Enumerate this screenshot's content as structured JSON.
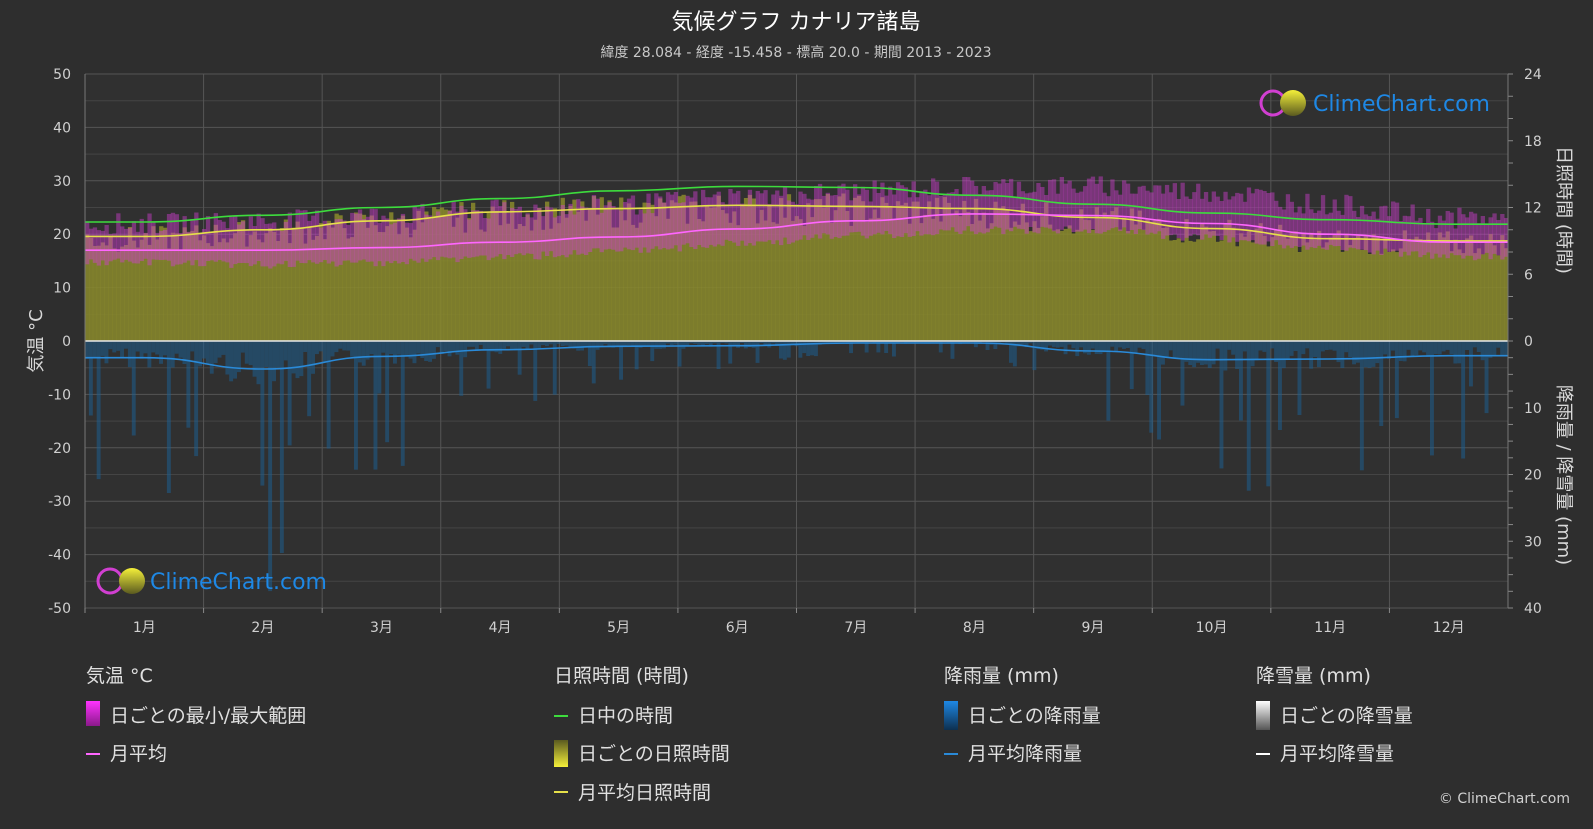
{
  "header": {
    "title": "気候グラフ カナリア諸島",
    "subtitle": "緯度 28.084 - 経度 -15.458 - 標高 20.0 - 期間 2013 - 2023"
  },
  "brand": {
    "logo_text": "ClimeChart.com",
    "copyright": "© ClimeChart.com"
  },
  "colors": {
    "background": "#2e2e2e",
    "temp_range": "#d13fd1",
    "temp_avg": "#ff66ff",
    "daylight": "#3ddc3d",
    "sunshine_fill": "#8a8a2c",
    "sunshine_avg": "#e6e04a",
    "rain_bars": "#1d5f8f",
    "rain_avg": "#2a8ad8",
    "snow": "#ffffff",
    "logo_text": "#1e88e5"
  },
  "chart_data": {
    "type": "area",
    "categories": [
      "1月",
      "2月",
      "3月",
      "4月",
      "5月",
      "6月",
      "7月",
      "8月",
      "9月",
      "10月",
      "11月",
      "12月"
    ],
    "axes": {
      "left": {
        "label": "気温 °C",
        "min": -50,
        "max": 50,
        "ticks": [
          "50",
          "40",
          "30",
          "20",
          "10",
          "0",
          "-10",
          "-20",
          "-30",
          "-40",
          "-50"
        ]
      },
      "right_top": {
        "label": "日照時間 (時間)",
        "min": 0,
        "max": 24,
        "ticks": [
          "24",
          "18",
          "12",
          "6",
          "0"
        ]
      },
      "right_bottom": {
        "label": "降雨量 / 降雪量 (mm)",
        "min": 0,
        "max": 40,
        "ticks": [
          "10",
          "20",
          "30",
          "40"
        ]
      }
    },
    "grid": true,
    "series": [
      {
        "name": "日中の時間",
        "unit": "h",
        "values": [
          10.7,
          11.3,
          12.0,
          12.8,
          13.5,
          13.9,
          13.8,
          13.1,
          12.3,
          11.5,
          10.9,
          10.5
        ]
      },
      {
        "name": "月平均日照時間",
        "unit": "h",
        "values": [
          9.4,
          10.0,
          10.8,
          11.6,
          11.9,
          12.2,
          12.1,
          11.9,
          11.1,
          10.1,
          9.2,
          9.0
        ]
      },
      {
        "name": "月平均",
        "unit": "°C",
        "values": [
          17.0,
          17.0,
          17.5,
          18.5,
          19.5,
          21.0,
          22.5,
          23.8,
          23.5,
          22.0,
          20.0,
          18.5
        ]
      },
      {
        "name": "日ごとの最小/最大範囲",
        "unit": "°C",
        "min": [
          15.5,
          15.0,
          15.5,
          16.5,
          17.5,
          19.0,
          20.5,
          21.5,
          21.5,
          20.0,
          18.0,
          16.5
        ],
        "max": [
          20.0,
          20.5,
          21.5,
          22.5,
          23.5,
          25.0,
          26.0,
          27.0,
          27.0,
          26.0,
          23.5,
          21.0
        ]
      },
      {
        "name": "月平均降雨量",
        "unit": "mm",
        "values": [
          2.5,
          4.2,
          2.3,
          1.3,
          0.8,
          0.7,
          0.3,
          0.3,
          1.5,
          2.8,
          2.7,
          2.2
        ]
      }
    ]
  },
  "legend": {
    "groups": [
      {
        "heading": "気温 °C",
        "items": [
          {
            "label": "日ごとの最小/最大範囲",
            "swatch": "range"
          },
          {
            "label": "月平均",
            "swatch": "line"
          }
        ]
      },
      {
        "heading": "日照時間 (時間)",
        "items": [
          {
            "label": "日中の時間",
            "swatch": "line"
          },
          {
            "label": "日ごとの日照時間",
            "swatch": "sun"
          },
          {
            "label": "月平均日照時間",
            "swatch": "line"
          }
        ]
      },
      {
        "heading": "降雨量 (mm)",
        "items": [
          {
            "label": "日ごとの降雨量",
            "swatch": "rain"
          },
          {
            "label": "月平均降雨量",
            "swatch": "line"
          }
        ]
      },
      {
        "heading": "降雪量 (mm)",
        "items": [
          {
            "label": "日ごとの降雪量",
            "swatch": "snow"
          },
          {
            "label": "月平均降雪量",
            "swatch": "line"
          }
        ]
      }
    ]
  }
}
